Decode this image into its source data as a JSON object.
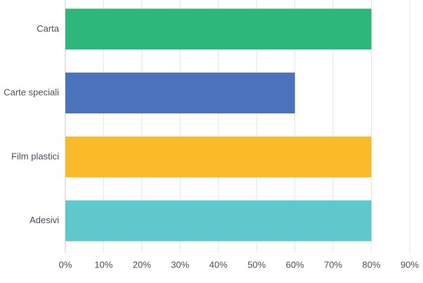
{
  "chart_data": {
    "type": "hbar",
    "categories": [
      "Carta",
      "Carte speciali",
      "Film plastici",
      "Adesivi"
    ],
    "values": [
      80,
      60,
      80,
      80
    ],
    "colors": [
      "#2db87a",
      "#4b72bd",
      "#f9bb2a",
      "#5ec8cc"
    ],
    "xlim": [
      0,
      90
    ],
    "xticks": [
      {
        "value": 0,
        "label": "0%"
      },
      {
        "value": 10,
        "label": "10%"
      },
      {
        "value": 20,
        "label": "20%"
      },
      {
        "value": 30,
        "label": "30%"
      },
      {
        "value": 40,
        "label": "40%"
      },
      {
        "value": 50,
        "label": "50%"
      },
      {
        "value": 60,
        "label": "60%"
      },
      {
        "value": 70,
        "label": "70%"
      },
      {
        "value": 80,
        "label": "80%"
      },
      {
        "value": 90,
        "label": "90%"
      }
    ],
    "grid": true
  }
}
